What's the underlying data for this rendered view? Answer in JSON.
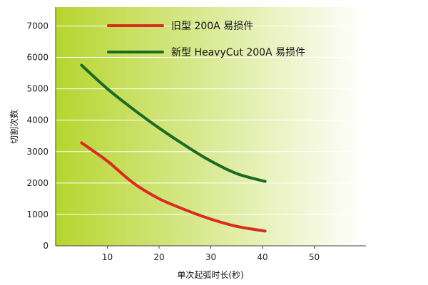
{
  "chart_data": {
    "type": "line",
    "xlabel": "单次起弧时长(秒)",
    "ylabel": "切割次数",
    "xticks": [
      10,
      20,
      30,
      40,
      50
    ],
    "yticks": [
      0,
      1000,
      2000,
      3000,
      4000,
      5000,
      6000,
      7000
    ],
    "xlim": [
      0,
      60
    ],
    "ylim": [
      0,
      7600
    ],
    "grid": "horizontal",
    "legend_position": "top",
    "colors": {
      "plot_left": "#b7d52f",
      "plot_right": "#ffffff"
    },
    "series": [
      {
        "name": "旧型 200A 易损件",
        "color": "#d92b1e",
        "x": [
          5,
          10,
          15,
          20,
          25,
          30,
          35,
          40.5
        ],
        "y": [
          3280,
          2700,
          2000,
          1500,
          1150,
          850,
          620,
          470
        ]
      },
      {
        "name": "新型 HeavyCut 200A 易损件",
        "color": "#1c6b23",
        "x": [
          5,
          10,
          15,
          20,
          25,
          30,
          35,
          40.5
        ],
        "y": [
          5750,
          5000,
          4350,
          3750,
          3200,
          2700,
          2300,
          2050
        ]
      }
    ]
  }
}
